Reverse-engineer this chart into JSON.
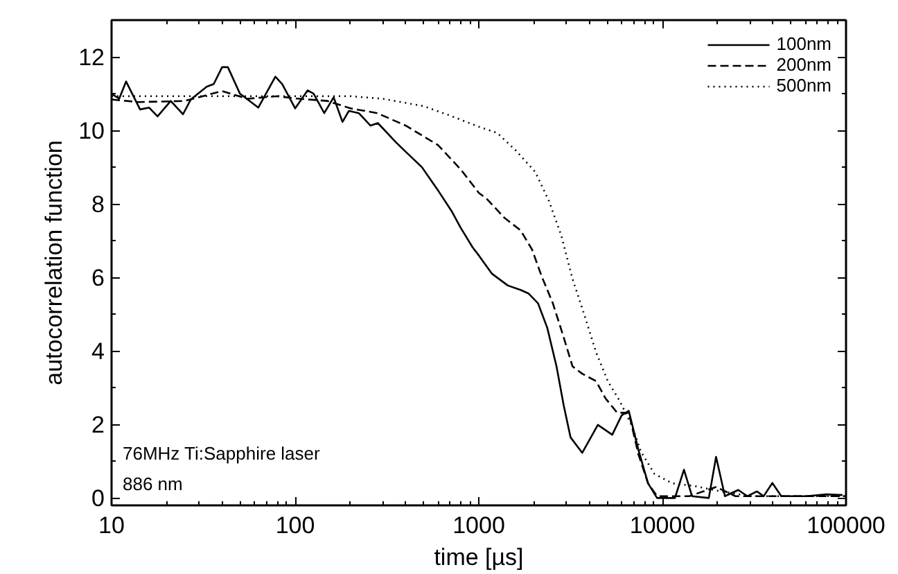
{
  "chart_data": {
    "type": "line",
    "xlabel": "time [µs]",
    "ylabel": "autocorrelation function",
    "log": "x",
    "xlim": [
      10,
      100000
    ],
    "xticks": [
      10,
      100,
      1000,
      10000,
      100000
    ],
    "ylim": [
      -0.2,
      13
    ],
    "yticks": [
      0,
      2,
      4,
      6,
      8,
      10,
      12
    ],
    "grid": false,
    "legend": "top right",
    "annotations": [
      "76MHz Ti:Sapphire laser",
      "886 nm"
    ],
    "series": [
      {
        "name": "100nm",
        "color": "#000000",
        "line_style": "solid",
        "x": [
          10,
          11,
          12,
          14.3,
          16,
          17.8,
          21,
          24.5,
          27,
          33,
          36,
          40,
          43,
          50,
          63,
          78,
          85,
          100,
          117,
          126,
          144,
          162,
          181,
          196,
          222,
          257,
          282,
          355,
          398,
          490,
          603,
          710,
          797,
          925,
          1000,
          1180,
          1440,
          1690,
          1870,
          2100,
          2360,
          2650,
          2900,
          3160,
          3660,
          4450,
          5330,
          6000,
          6560,
          7400,
          8350,
          9350,
          11700,
          13100,
          14500,
          17900,
          19600,
          21900,
          25900,
          29000,
          32700,
          35600,
          39700,
          44400,
          60900,
          78300,
          95700
        ],
        "values": [
          11.0,
          10.86,
          11.33,
          10.57,
          10.62,
          10.38,
          10.8,
          10.44,
          10.84,
          11.19,
          11.26,
          11.72,
          11.72,
          11.0,
          10.62,
          11.46,
          11.26,
          10.6,
          11.09,
          11.0,
          10.47,
          10.9,
          10.23,
          10.53,
          10.47,
          10.13,
          10.2,
          9.67,
          9.43,
          9.0,
          8.35,
          7.81,
          7.35,
          6.82,
          6.6,
          6.1,
          5.78,
          5.66,
          5.56,
          5.3,
          4.63,
          3.58,
          2.52,
          1.65,
          1.23,
          1.99,
          1.72,
          2.25,
          2.37,
          1.31,
          0.4,
          0.0,
          0.0,
          0.77,
          0.05,
          0.0,
          1.12,
          0.05,
          0.22,
          0.05,
          0.18,
          0.05,
          0.41,
          0.05,
          0.05,
          0.1,
          0.08
        ]
      },
      {
        "name": "200nm",
        "color": "#000000",
        "line_style": "dashed",
        "x": [
          10,
          14,
          25,
          40,
          55,
          80,
          100,
          150,
          200,
          280,
          400,
          600,
          800,
          1000,
          1100,
          1380,
          1690,
          1950,
          2200,
          2530,
          2900,
          3240,
          3660,
          4350,
          4900,
          5670,
          6560,
          7400,
          8350,
          9350,
          14000,
          19600,
          25000,
          100000
        ],
        "values": [
          10.84,
          10.77,
          10.8,
          11.07,
          10.86,
          10.93,
          10.87,
          10.8,
          10.6,
          10.47,
          10.13,
          9.6,
          8.93,
          8.3,
          8.15,
          7.62,
          7.28,
          6.76,
          6.03,
          5.3,
          4.37,
          3.58,
          3.38,
          3.18,
          2.71,
          2.32,
          2.32,
          1.19,
          0.4,
          0.05,
          0.05,
          0.3,
          0.05,
          0.05
        ]
      },
      {
        "name": "500nm",
        "color": "#000000",
        "line_style": "dotted",
        "x": [
          10,
          50,
          100,
          200,
          300,
          500,
          700,
          1000,
          1260,
          1580,
          2030,
          2410,
          2810,
          3240,
          3730,
          4350,
          5040,
          5840,
          6790,
          7640,
          9040,
          11300,
          14800,
          19900,
          30200,
          100000
        ],
        "values": [
          10.93,
          10.93,
          10.93,
          10.93,
          10.86,
          10.66,
          10.4,
          10.1,
          9.93,
          9.47,
          8.87,
          8.08,
          7.15,
          5.96,
          5.03,
          3.97,
          3.18,
          2.65,
          1.99,
          1.26,
          0.66,
          0.4,
          0.33,
          0.2,
          0.05,
          0.05
        ]
      }
    ]
  }
}
